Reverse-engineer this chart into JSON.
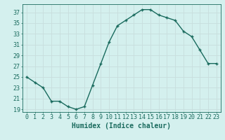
{
  "x": [
    0,
    1,
    2,
    3,
    4,
    5,
    6,
    7,
    8,
    9,
    10,
    11,
    12,
    13,
    14,
    15,
    16,
    17,
    18,
    19,
    20,
    21,
    22,
    23
  ],
  "y": [
    25,
    24,
    23,
    20.5,
    20.5,
    19.5,
    19,
    19.5,
    23.5,
    27.5,
    31.5,
    34.5,
    35.5,
    36.5,
    37.5,
    37.5,
    36.5,
    36,
    35.5,
    33.5,
    32.5,
    30,
    27.5,
    27.5
  ],
  "line_color": "#1a6b5e",
  "bg_color": "#d4f0ee",
  "grid_color": "#c8dedd",
  "xlabel": "Humidex (Indice chaleur)",
  "ylabel_ticks": [
    19,
    21,
    23,
    25,
    27,
    29,
    31,
    33,
    35,
    37
  ],
  "xlim": [
    -0.5,
    23.5
  ],
  "ylim": [
    18.5,
    38.5
  ],
  "marker": "+",
  "marker_size": 3,
  "line_width": 1.0,
  "xlabel_fontsize": 7,
  "tick_fontsize": 6,
  "label_color": "#1a6b5e"
}
